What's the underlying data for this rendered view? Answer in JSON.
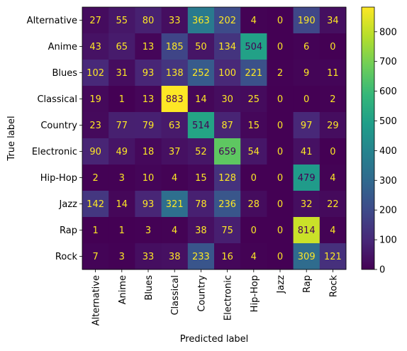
{
  "chart_data": {
    "type": "heatmap",
    "xlabel": "Predicted label",
    "ylabel": "True label",
    "x_categories": [
      "Alternative",
      "Anime",
      "Blues",
      "Classical",
      "Country",
      "Electronic",
      "Hip-Hop",
      "Jazz",
      "Rap",
      "Rock"
    ],
    "y_categories": [
      "Alternative",
      "Anime",
      "Blues",
      "Classical",
      "Country",
      "Electronic",
      "Hip-Hop",
      "Jazz",
      "Rap",
      "Rock"
    ],
    "values": [
      [
        27,
        55,
        80,
        33,
        363,
        202,
        4,
        0,
        190,
        34
      ],
      [
        43,
        65,
        13,
        185,
        50,
        134,
        504,
        0,
        6,
        0
      ],
      [
        102,
        31,
        93,
        138,
        252,
        100,
        221,
        2,
        9,
        11
      ],
      [
        19,
        1,
        13,
        883,
        14,
        30,
        25,
        0,
        0,
        2
      ],
      [
        23,
        77,
        79,
        63,
        514,
        87,
        15,
        0,
        97,
        29
      ],
      [
        90,
        49,
        18,
        37,
        52,
        659,
        54,
        0,
        41,
        0
      ],
      [
        2,
        3,
        10,
        4,
        15,
        128,
        0,
        0,
        479,
        4
      ],
      [
        142,
        14,
        93,
        321,
        78,
        236,
        28,
        0,
        32,
        22
      ],
      [
        1,
        1,
        3,
        4,
        38,
        75,
        0,
        0,
        814,
        4
      ],
      [
        7,
        3,
        33,
        38,
        233,
        16,
        4,
        0,
        309,
        121
      ]
    ],
    "colormap": "viridis",
    "vmin": 0,
    "vmax": 883,
    "colorbar_ticks": [
      "0",
      "100",
      "200",
      "300",
      "400",
      "500",
      "600",
      "700",
      "800"
    ],
    "text_color_light": "#fde725",
    "text_color_dark": "#440154",
    "grid": false
  }
}
